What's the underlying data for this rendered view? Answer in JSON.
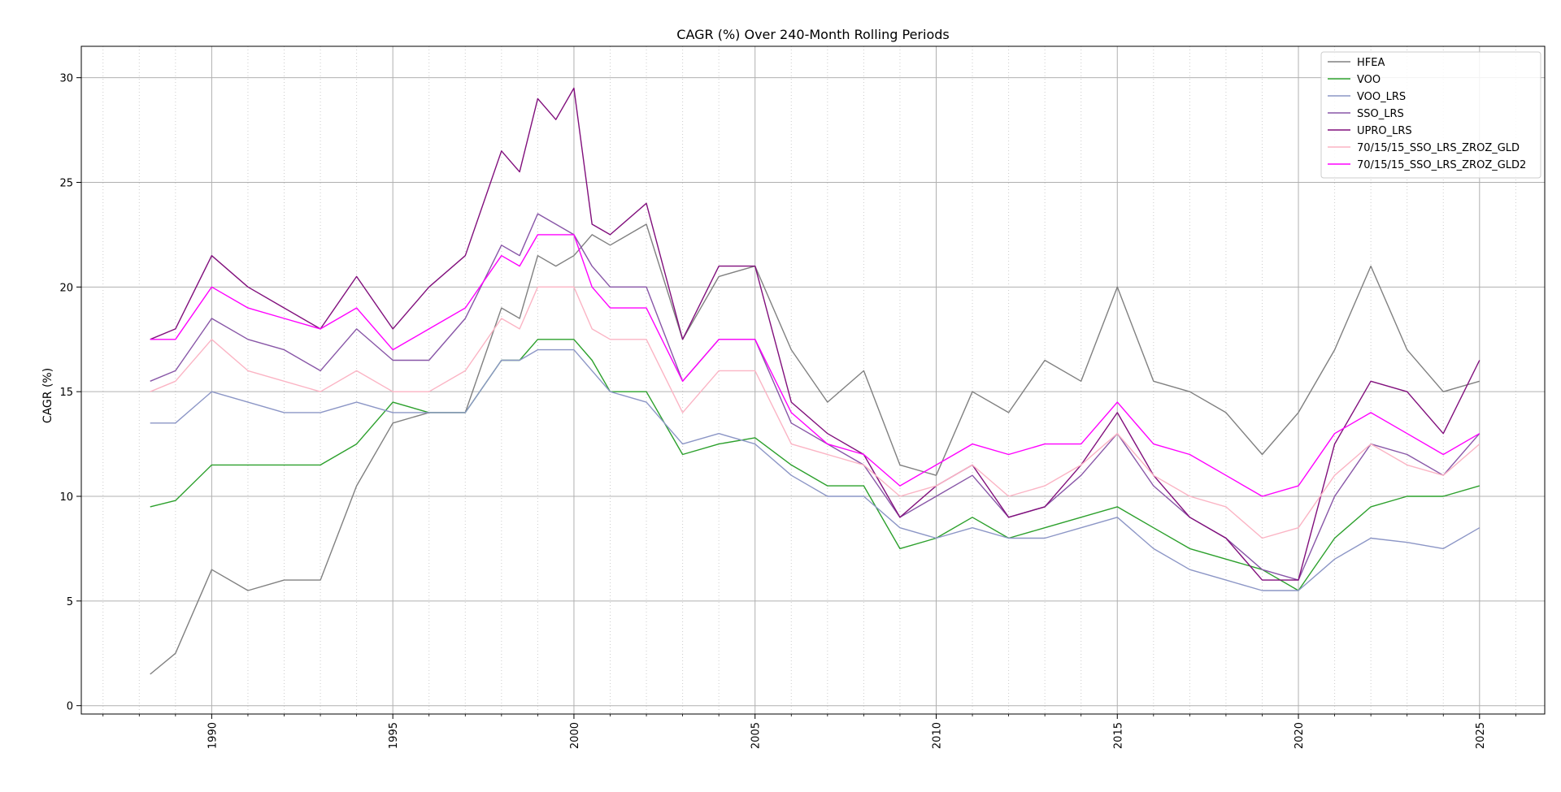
{
  "chart_data": {
    "type": "line",
    "title": "CAGR (%) Over 240-Month Rolling Periods",
    "xlabel": "",
    "ylabel": "CAGR (%)",
    "xlim": [
      1986.4,
      2026.8
    ],
    "ylim": [
      -0.4,
      31.5
    ],
    "x_ticks": [
      1990,
      1995,
      2000,
      2005,
      2010,
      2015,
      2020,
      2025
    ],
    "y_ticks": [
      0,
      5,
      10,
      15,
      20,
      25,
      30
    ],
    "grid": "major solid, minor dotted (x yearly)",
    "legend": "top-right",
    "x": [
      1988.3,
      1989.0,
      1990.0,
      1991.0,
      1992.0,
      1993.0,
      1994.0,
      1995.0,
      1996.0,
      1997.0,
      1998.0,
      1998.5,
      1999.0,
      1999.5,
      2000.0,
      2000.5,
      2001.0,
      2002.0,
      2003.0,
      2004.0,
      2005.0,
      2006.0,
      2007.0,
      2008.0,
      2009.0,
      2010.0,
      2011.0,
      2012.0,
      2013.0,
      2014.0,
      2015.0,
      2016.0,
      2017.0,
      2018.0,
      2019.0,
      2020.0,
      2021.0,
      2022.0,
      2023.0,
      2024.0,
      2025.0
    ],
    "series": [
      {
        "name": "HFEA",
        "color": "#808080",
        "values": [
          1.5,
          2.5,
          6.5,
          5.5,
          6.0,
          6.0,
          10.5,
          13.5,
          14.0,
          14.0,
          19.0,
          18.5,
          21.5,
          21.0,
          21.5,
          22.5,
          22.0,
          23.0,
          17.5,
          20.5,
          21.0,
          17.0,
          14.5,
          16.0,
          11.5,
          11.0,
          15.0,
          14.0,
          16.5,
          15.5,
          20.0,
          15.5,
          15.0,
          14.0,
          12.0,
          14.0,
          17.0,
          21.0,
          17.0,
          15.0,
          15.5
        ]
      },
      {
        "name": "VOO",
        "color": "#2ca02c",
        "values": [
          9.5,
          9.8,
          11.5,
          11.5,
          11.5,
          11.5,
          12.5,
          14.5,
          14.0,
          14.0,
          16.5,
          16.5,
          17.5,
          17.5,
          17.5,
          16.5,
          15.0,
          15.0,
          12.0,
          12.5,
          12.8,
          11.5,
          10.5,
          10.5,
          7.5,
          8.0,
          9.0,
          8.0,
          8.5,
          9.0,
          9.5,
          8.5,
          7.5,
          7.0,
          6.5,
          5.5,
          8.0,
          9.5,
          10.0,
          10.0,
          10.5
        ]
      },
      {
        "name": "VOO_LRS",
        "color": "#8c96c6",
        "values": [
          13.5,
          13.5,
          15.0,
          14.5,
          14.0,
          14.0,
          14.5,
          14.0,
          14.0,
          14.0,
          16.5,
          16.5,
          17.0,
          17.0,
          17.0,
          16.0,
          15.0,
          14.5,
          12.5,
          13.0,
          12.5,
          11.0,
          10.0,
          10.0,
          8.5,
          8.0,
          8.5,
          8.0,
          8.0,
          8.5,
          9.0,
          7.5,
          6.5,
          6.0,
          5.5,
          5.5,
          7.0,
          8.0,
          7.8,
          7.5,
          8.5
        ]
      },
      {
        "name": "SSO_LRS",
        "color": "#8856a7",
        "values": [
          15.5,
          16.0,
          18.5,
          17.5,
          17.0,
          16.0,
          18.0,
          16.5,
          16.5,
          18.5,
          22.0,
          21.5,
          23.5,
          23.0,
          22.5,
          21.0,
          20.0,
          20.0,
          15.5,
          17.5,
          17.5,
          13.5,
          12.5,
          11.5,
          9.0,
          10.0,
          11.0,
          9.0,
          9.5,
          11.0,
          13.0,
          10.5,
          9.0,
          8.0,
          6.5,
          6.0,
          10.0,
          12.5,
          12.0,
          11.0,
          13.0
        ]
      },
      {
        "name": "UPRO_LRS",
        "color": "#810f7c",
        "values": [
          17.5,
          18.0,
          21.5,
          20.0,
          19.0,
          18.0,
          20.5,
          18.0,
          20.0,
          21.5,
          26.5,
          25.5,
          29.0,
          28.0,
          29.5,
          23.0,
          22.5,
          24.0,
          17.5,
          21.0,
          21.0,
          14.5,
          13.0,
          12.0,
          9.0,
          10.5,
          11.5,
          9.0,
          9.5,
          11.5,
          14.0,
          11.0,
          9.0,
          8.0,
          6.0,
          6.0,
          12.5,
          15.5,
          15.0,
          13.0,
          16.5
        ]
      },
      {
        "name": "70/15/15_SSO_LRS_ZROZ_GLD",
        "color": "#fbb4c4",
        "values": [
          15.0,
          15.5,
          17.5,
          16.0,
          15.5,
          15.0,
          16.0,
          15.0,
          15.0,
          16.0,
          18.5,
          18.0,
          20.0,
          20.0,
          20.0,
          18.0,
          17.5,
          17.5,
          14.0,
          16.0,
          16.0,
          12.5,
          12.0,
          11.5,
          10.0,
          10.5,
          11.5,
          10.0,
          10.5,
          11.5,
          13.0,
          11.0,
          10.0,
          9.5,
          8.0,
          8.5,
          11.0,
          12.5,
          11.5,
          11.0,
          12.5
        ]
      },
      {
        "name": "70/15/15_SSO_LRS_ZROZ_GLD2",
        "color": "#ff00ff",
        "values": [
          17.5,
          17.5,
          20.0,
          19.0,
          18.5,
          18.0,
          19.0,
          17.0,
          18.0,
          19.0,
          21.5,
          21.0,
          22.5,
          22.5,
          22.5,
          20.0,
          19.0,
          19.0,
          15.5,
          17.5,
          17.5,
          14.0,
          12.5,
          12.0,
          10.5,
          11.5,
          12.5,
          12.0,
          12.5,
          12.5,
          14.5,
          12.5,
          12.0,
          11.0,
          10.0,
          10.5,
          13.0,
          14.0,
          13.0,
          12.0,
          13.0
        ]
      }
    ]
  }
}
